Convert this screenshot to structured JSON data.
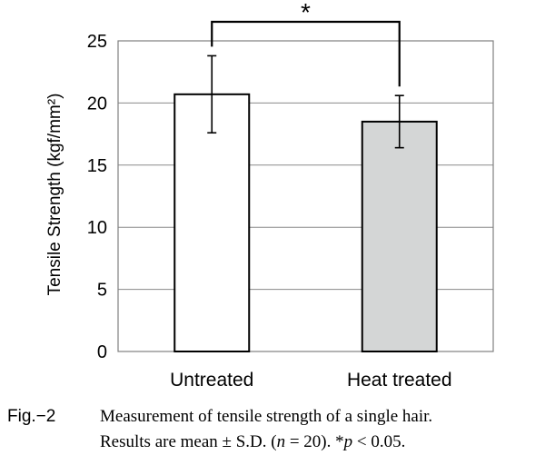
{
  "chart_data": {
    "type": "bar",
    "categories": [
      "Untreated",
      "Heat treated"
    ],
    "values": [
      20.7,
      18.5
    ],
    "errors": [
      3.1,
      2.1
    ],
    "bar_colors": [
      "#ffffff",
      "#d4d6d6"
    ],
    "ylabel": "Tensile Strength (kgf/mm²)",
    "ylim": [
      0,
      25
    ],
    "yticks": [
      "0",
      "5",
      "10",
      "15",
      "20",
      "25"
    ],
    "grid": true,
    "significance": {
      "between": [
        0,
        1
      ],
      "marker": "*"
    }
  },
  "caption": {
    "label": "Fig.−2",
    "line1": "Measurement of tensile strength of a single hair.",
    "line2_pre": "Results are mean ± S.D. (",
    "line2_n": "n",
    "line2_mid": " = 20). ",
    "line2_star": "*",
    "line2_p": "p",
    "line2_post": " < 0.05."
  }
}
